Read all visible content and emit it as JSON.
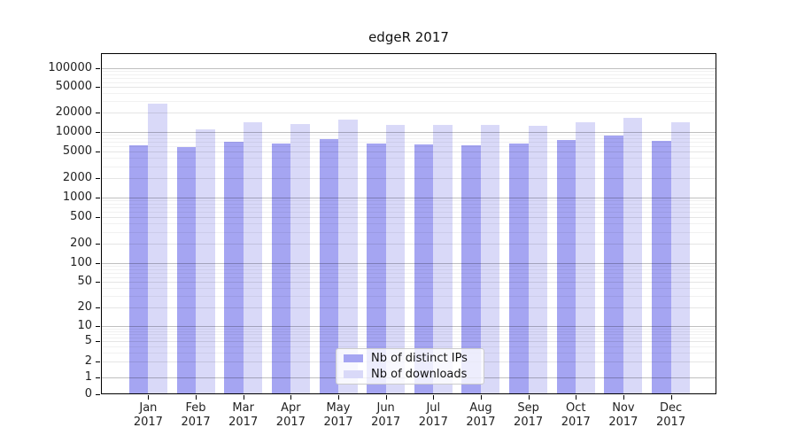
{
  "title": "edgeR 2017",
  "colors": {
    "ips": "#a5a5f2",
    "downloads": "#d9d9f8"
  },
  "legend": {
    "items": [
      {
        "label": "Nb of distinct IPs",
        "color_key": "ips"
      },
      {
        "label": "Nb of downloads",
        "color_key": "downloads"
      }
    ]
  },
  "chart_data": {
    "type": "bar",
    "title": "edgeR 2017",
    "xlabel": "",
    "ylabel": "",
    "yscale": "symlog",
    "ylim": [
      0,
      170000
    ],
    "grid": "horizontal",
    "legend_position": "lower center",
    "year_label": "2017",
    "months": [
      "Jan",
      "Feb",
      "Mar",
      "Apr",
      "May",
      "Jun",
      "Jul",
      "Aug",
      "Sep",
      "Oct",
      "Nov",
      "Dec"
    ],
    "categories": [
      "Jan 2017",
      "Feb 2017",
      "Mar 2017",
      "Apr 2017",
      "May 2017",
      "Jun 2017",
      "Jul 2017",
      "Aug 2017",
      "Sep 2017",
      "Oct 2017",
      "Nov 2017",
      "Dec 2017"
    ],
    "ytick_labels": [
      "0",
      "1",
      "2",
      "5",
      "10",
      "20",
      "50",
      "100",
      "200",
      "500",
      "1000",
      "2000",
      "5000",
      "10000",
      "20000",
      "50000",
      "100000"
    ],
    "ytick_values": [
      0,
      1,
      2,
      5,
      10,
      20,
      50,
      100,
      200,
      500,
      1000,
      2000,
      5000,
      10000,
      20000,
      50000,
      100000
    ],
    "series": [
      {
        "name": "Nb of distinct IPs",
        "color_key": "ips",
        "values": [
          6300,
          5900,
          7200,
          6700,
          7700,
          6700,
          6400,
          6300,
          6600,
          7500,
          8700,
          7400
        ]
      },
      {
        "name": "Nb of downloads",
        "color_key": "downloads",
        "values": [
          28000,
          11000,
          14200,
          13300,
          15400,
          12900,
          12800,
          12700,
          12600,
          14400,
          16800,
          14100
        ]
      }
    ]
  }
}
